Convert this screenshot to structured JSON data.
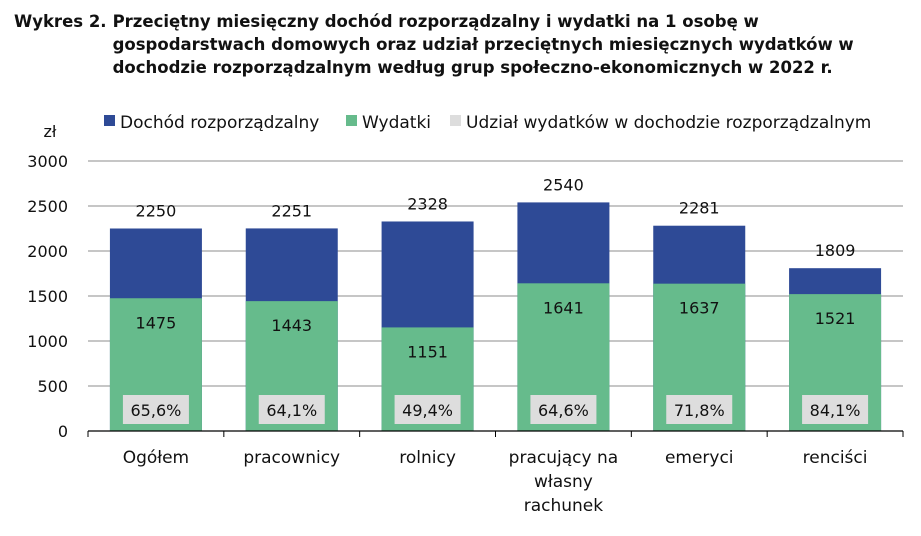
{
  "title": {
    "lead": "Wykres 2.",
    "text": "Przeciętny miesięczny dochód rozporządzalny i wydatki na 1 osobę w gospodarstwach domowych oraz udział przeciętnych miesięcznych wydatków w dochodzie rozporządzalnym według grup społeczno-ekonomicznych w 2022 r."
  },
  "colors": {
    "income": "#2e4a96",
    "expenses": "#66bb8c",
    "share": "#dddddd",
    "axis": "#000000",
    "grid": "#8c8c8c"
  },
  "chart_data": {
    "type": "bar",
    "stacking": "overlapped",
    "ylabel": "zł",
    "ylim": [
      0,
      3000
    ],
    "yticks": [
      0,
      500,
      1000,
      1500,
      2000,
      2500,
      3000
    ],
    "grid": true,
    "legend_position": "top",
    "categories": [
      "Ogółem",
      "pracownicy",
      "rolnicy",
      "pracujący na własny rachunek",
      "emeryci",
      "renciści"
    ],
    "category_lines": [
      [
        "Ogółem"
      ],
      [
        "pracownicy"
      ],
      [
        "rolnicy"
      ],
      [
        "pracujący na",
        "własny",
        "rachunek"
      ],
      [
        "emeryci"
      ],
      [
        "renciści"
      ]
    ],
    "series": [
      {
        "name": "Dochód rozporządzalny",
        "values": [
          2250,
          2251,
          2328,
          2540,
          2281,
          1809
        ]
      },
      {
        "name": "Wydatki",
        "values": [
          1475,
          1443,
          1151,
          1641,
          1637,
          1521
        ]
      },
      {
        "name": "Udział wydatków w dochodzie rozporządzalnym",
        "values": [
          "65,6%",
          "64,1%",
          "49,4%",
          "64,6%",
          "71,8%",
          "84,1%"
        ]
      }
    ]
  }
}
